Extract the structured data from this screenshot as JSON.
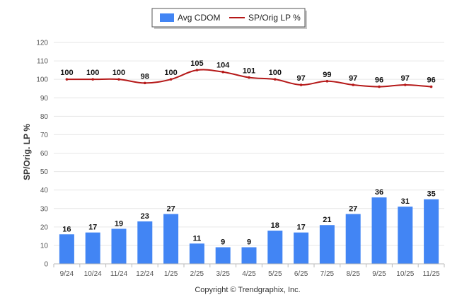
{
  "chart_data": {
    "type": "bar",
    "categories": [
      "9/24",
      "10/24",
      "11/24",
      "12/24",
      "1/25",
      "2/25",
      "3/25",
      "4/25",
      "5/25",
      "6/25",
      "7/25",
      "8/25",
      "9/25",
      "10/25",
      "11/25"
    ],
    "series": [
      {
        "name": "Avg CDOM",
        "type": "bar",
        "color": "#4285f4",
        "values": [
          16,
          17,
          19,
          23,
          27,
          11,
          9,
          9,
          18,
          17,
          21,
          27,
          36,
          31,
          35
        ]
      },
      {
        "name": "SP/Orig LP %",
        "type": "line",
        "color": "#b51818",
        "values": [
          100,
          100,
          100,
          98,
          100,
          105,
          104,
          101,
          100,
          97,
          99,
          97,
          96,
          97,
          96
        ]
      }
    ],
    "ylabel": "SP/Orig. LP %",
    "ylim": [
      0,
      120
    ],
    "yticks": [
      0,
      10,
      20,
      30,
      40,
      50,
      60,
      70,
      80,
      90,
      100,
      110,
      120
    ],
    "grid": true,
    "legend": "top-center"
  },
  "copyright": "Copyright © Trendgraphix, Inc."
}
